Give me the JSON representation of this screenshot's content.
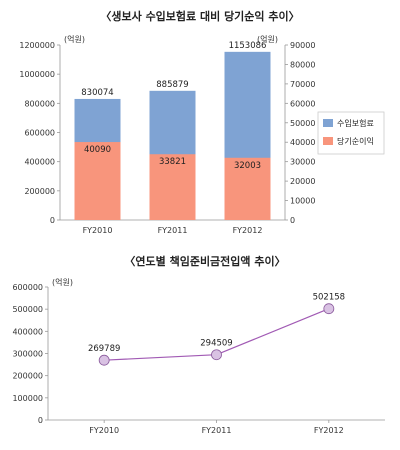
{
  "chart_data": [
    {
      "type": "bar",
      "title": "〈생보사 수입보험료 대비 당기순익 추이〉",
      "left_unit": "(억원)",
      "right_unit": "(억원)",
      "categories": [
        "FY2010",
        "FY2011",
        "FY2012"
      ],
      "series": [
        {
          "name": "수입보험료",
          "axis": "left",
          "values": [
            830074,
            885879,
            1153086
          ],
          "color": "#7fa3d3"
        },
        {
          "name": "당기순이익",
          "axis": "right",
          "values": [
            40090,
            33821,
            32003
          ],
          "color": "#f8957c"
        }
      ],
      "ylim_left": [
        0,
        1200000
      ],
      "yticks_left": [
        "0",
        "200000",
        "400000",
        "600000",
        "800000",
        "1000000",
        "1200000"
      ],
      "ylim_right": [
        0,
        90000
      ],
      "yticks_right": [
        "0",
        "10000",
        "20000",
        "30000",
        "40000",
        "50000",
        "60000",
        "70000",
        "80000",
        "90000"
      ],
      "legend_position": "right"
    },
    {
      "type": "line",
      "title": "〈연도별 책임준비금전입액 추이〉",
      "unit": "(억원)",
      "categories": [
        "FY2010",
        "FY2011",
        "FY2012"
      ],
      "values": [
        269789,
        294509,
        502158
      ],
      "ylim": [
        0,
        600000
      ],
      "yticks": [
        "0",
        "100000",
        "200000",
        "300000",
        "400000",
        "500000",
        "600000"
      ],
      "line_color": "#a15ab4",
      "marker_color": "#d9c2e3"
    }
  ]
}
